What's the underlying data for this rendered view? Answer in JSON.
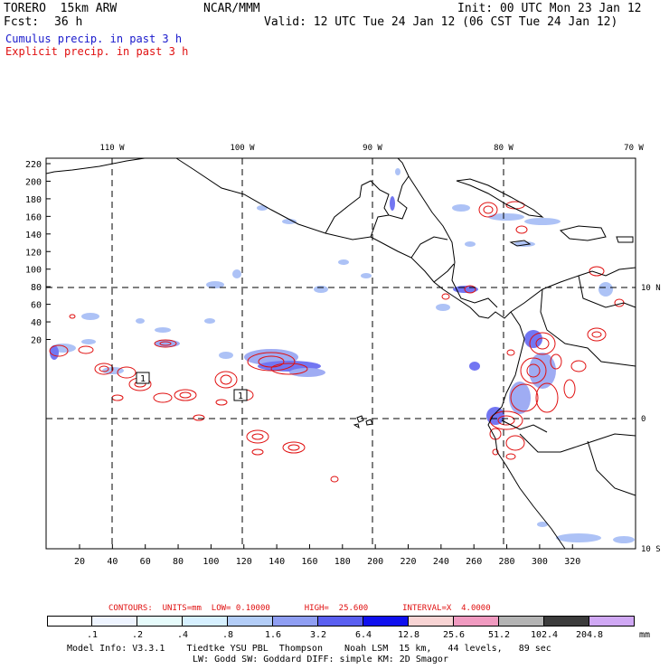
{
  "header": {
    "model": "TORERO  15km ARW",
    "fcst_label": "Fcst:",
    "fcst_value": "36 h",
    "org": "NCAR/MMM",
    "init": "Init: 00 UTC Mon 23 Jan 12",
    "valid": "Valid: 12 UTC Tue 24 Jan 12 (06 CST Tue 24 Jan 12)",
    "legend_cumulus": "Cumulus precip. in past 3 h",
    "legend_explicit": "Explicit precip. in past 3 h"
  },
  "axes": {
    "lon_labels": [
      "110 W",
      "100 W",
      "90 W",
      "80 W",
      "70 W"
    ],
    "lat_labels": [
      "10 N",
      "0",
      "10 S"
    ],
    "y_ticks": [
      "220",
      "200",
      "180",
      "160",
      "140",
      "120",
      "100",
      "80",
      "60",
      "40",
      "20"
    ],
    "x_ticks": [
      "20",
      "40",
      "60",
      "80",
      "100",
      "120",
      "140",
      "160",
      "180",
      "200",
      "220",
      "240",
      "260",
      "280",
      "300",
      "320"
    ]
  },
  "markers": [
    "1",
    "1"
  ],
  "contours_info": {
    "label": "CONTOURS:  UNITS=mm  LOW= 0.10000       HIGH=  25.600       INTERVAL=X  4.0000"
  },
  "colorbar": {
    "levels": [
      ".1",
      ".2",
      ".4",
      ".8",
      "1.6",
      "3.2",
      "6.4",
      "12.8",
      "25.6",
      "51.2",
      "102.4",
      "204.8"
    ],
    "unit": "mm",
    "colors": [
      "#ffffff",
      "#eef4ff",
      "#e6fbfb",
      "#d6f0ff",
      "#b3cdf7",
      "#8f9ef2",
      "#5a5ff0",
      "#1010ee",
      "#f8d4d4",
      "#f09ac0",
      "#b4b4b4",
      "#3c3c3c",
      "#d0a8f4"
    ]
  },
  "footer": {
    "line1": "Model Info: V3.3.1    Tiedtke YSU PBL  Thompson    Noah LSM  15 km,   44 levels,   89 sec",
    "line2": "LW: Godd SW: Goddard DIFF: simple KM: 2D Smagor"
  }
}
